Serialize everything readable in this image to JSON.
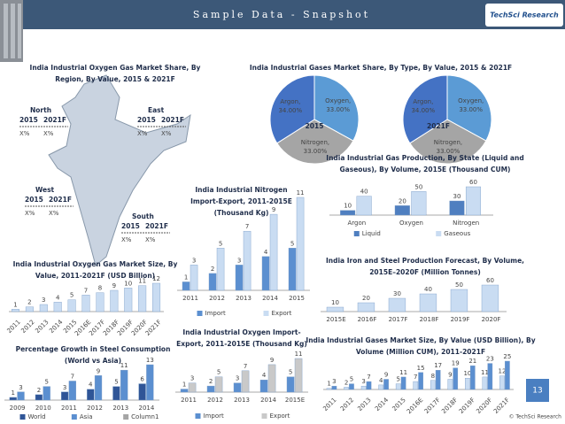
{
  "header": {
    "title": "Sample Data - Snapshot",
    "logo": "TechSci Research"
  },
  "map": {
    "title": "India Industrial Oxygen Gas Market Share, By Region, By Value, 2015 & 2021F",
    "regions": [
      {
        "name": "North",
        "years": [
          "2015",
          "2021F"
        ],
        "values": [
          "X%",
          "X%"
        ]
      },
      {
        "name": "East",
        "years": [
          "2015",
          "2021F"
        ],
        "values": [
          "X%",
          "X%"
        ]
      },
      {
        "name": "West",
        "years": [
          "2015",
          "2021F"
        ],
        "values": [
          "X%",
          "X%"
        ]
      },
      {
        "name": "South",
        "years": [
          "2015",
          "2021F"
        ],
        "values": [
          "X%",
          "X%"
        ]
      }
    ]
  },
  "chart_data": [
    {
      "type": "pie",
      "title": "India Industrial Gases Market Share, By Type, By Value, 2015 & 2021F",
      "center_label": "2015",
      "categories": [
        "Oxygen,",
        "Nitrogen,",
        "Argon,"
      ],
      "values": [
        33,
        33,
        34
      ],
      "value_labels": [
        "33.00%",
        "33.00%",
        "34.00%"
      ],
      "colors": [
        "#5b9bd5",
        "#a5a5a5",
        "#4472c4"
      ]
    },
    {
      "type": "pie",
      "center_label": "2021F",
      "categories": [
        "Oxygen,",
        "Nitrogen,",
        "Argon,"
      ],
      "values": [
        33,
        33,
        34
      ],
      "value_labels": [
        "33.00%",
        "33.00%",
        "34.00%"
      ],
      "colors": [
        "#5b9bd5",
        "#a5a5a5",
        "#4472c4"
      ]
    },
    {
      "type": "bar",
      "title": "India Industrial Gas Production, By State (Liquid and Gaseous), By Volume, 2015E (Thousand CUM)",
      "categories": [
        "Argon",
        "Oxygen",
        "Nitrogen"
      ],
      "series": [
        {
          "name": "Liquid",
          "color": "#4f7fc0",
          "values": [
            10,
            20,
            30
          ]
        },
        {
          "name": "Gaseous",
          "color": "#c9dcf2",
          "values": [
            40,
            50,
            60
          ]
        }
      ]
    },
    {
      "type": "bar",
      "title": "India Iron and Steel Production Forecast, By Volume, 2015E–2020F (Million Tonnes)",
      "categories": [
        "2015E",
        "2016F",
        "2017F",
        "2018F",
        "2019F",
        "2020F"
      ],
      "values": [
        10,
        20,
        30,
        40,
        50,
        60
      ],
      "color": "#c9dcf2"
    },
    {
      "type": "bar",
      "title": "India Industrial Nitrogen Import-Export, 2011-2015E (Thousand Kg)",
      "categories": [
        "2011",
        "2012",
        "2013",
        "2014",
        "2015"
      ],
      "series": [
        {
          "name": "Import",
          "color": "#5b8fd0",
          "values": [
            1,
            2,
            3,
            4,
            5
          ]
        },
        {
          "name": "Export",
          "color": "#c9dcf2",
          "values": [
            3,
            5,
            7,
            9,
            11
          ]
        }
      ]
    },
    {
      "type": "bar",
      "title": "India Industrial Oxygen Gas Market Size, By Value, 2011-2021F (USD Billion)",
      "categories": [
        "2011",
        "2012",
        "2013",
        "2014",
        "2015",
        "2016E",
        "2017F",
        "2018F",
        "2019F",
        "2020F",
        "2021F"
      ],
      "values": [
        1,
        2,
        3,
        4,
        5,
        7,
        8,
        9,
        10,
        11,
        12
      ],
      "color": "#c9dcf2"
    },
    {
      "type": "bar",
      "title": "Percentage Growth in Steel Consumption (World vs Asia)",
      "categories": [
        "2009",
        "2010",
        "2011",
        "2012",
        "2013",
        "2014"
      ],
      "series": [
        {
          "name": "World",
          "color": "#2f5597",
          "values": [
            1,
            2,
            3,
            4,
            5,
            6
          ]
        },
        {
          "name": "Asia",
          "color": "#5b8fd0",
          "values": [
            3,
            5,
            7,
            9,
            11,
            13
          ]
        },
        {
          "name": "Column1",
          "color": "#a5a5a5",
          "values": [
            null,
            null,
            null,
            null,
            null,
            null
          ]
        }
      ]
    },
    {
      "type": "bar",
      "title": "India Industrial Oxygen Import-Export, 2011-2015E (Thousand Kg)",
      "categories": [
        "2011",
        "2012",
        "2013",
        "2014",
        "2015E"
      ],
      "series": [
        {
          "name": "Import",
          "color": "#5b8fd0",
          "values": [
            1,
            2,
            3,
            4,
            5
          ]
        },
        {
          "name": "Export",
          "color": "#c9c9c9",
          "values": [
            3,
            5,
            7,
            9,
            11
          ]
        }
      ]
    },
    {
      "type": "bar",
      "title": "India Industrial Gases Market Size, By Value (USD Billion), By Volume (Million CUM), 2011-2021F",
      "categories": [
        "2011",
        "2012",
        "2013",
        "2014",
        "2015",
        "2016E",
        "2017F",
        "2018F",
        "2019F",
        "2020F",
        "2021F"
      ],
      "series": [
        {
          "color": "#c9dcf2",
          "values": [
            1,
            2,
            3,
            4,
            5,
            7,
            8,
            9,
            10,
            11,
            12
          ]
        },
        {
          "color": "#5b8fd0",
          "values": [
            3,
            5,
            7,
            9,
            11,
            15,
            17,
            19,
            21,
            23,
            25
          ]
        }
      ]
    }
  ],
  "footer": {
    "page": "13",
    "copyright": "© TechSci Research"
  }
}
